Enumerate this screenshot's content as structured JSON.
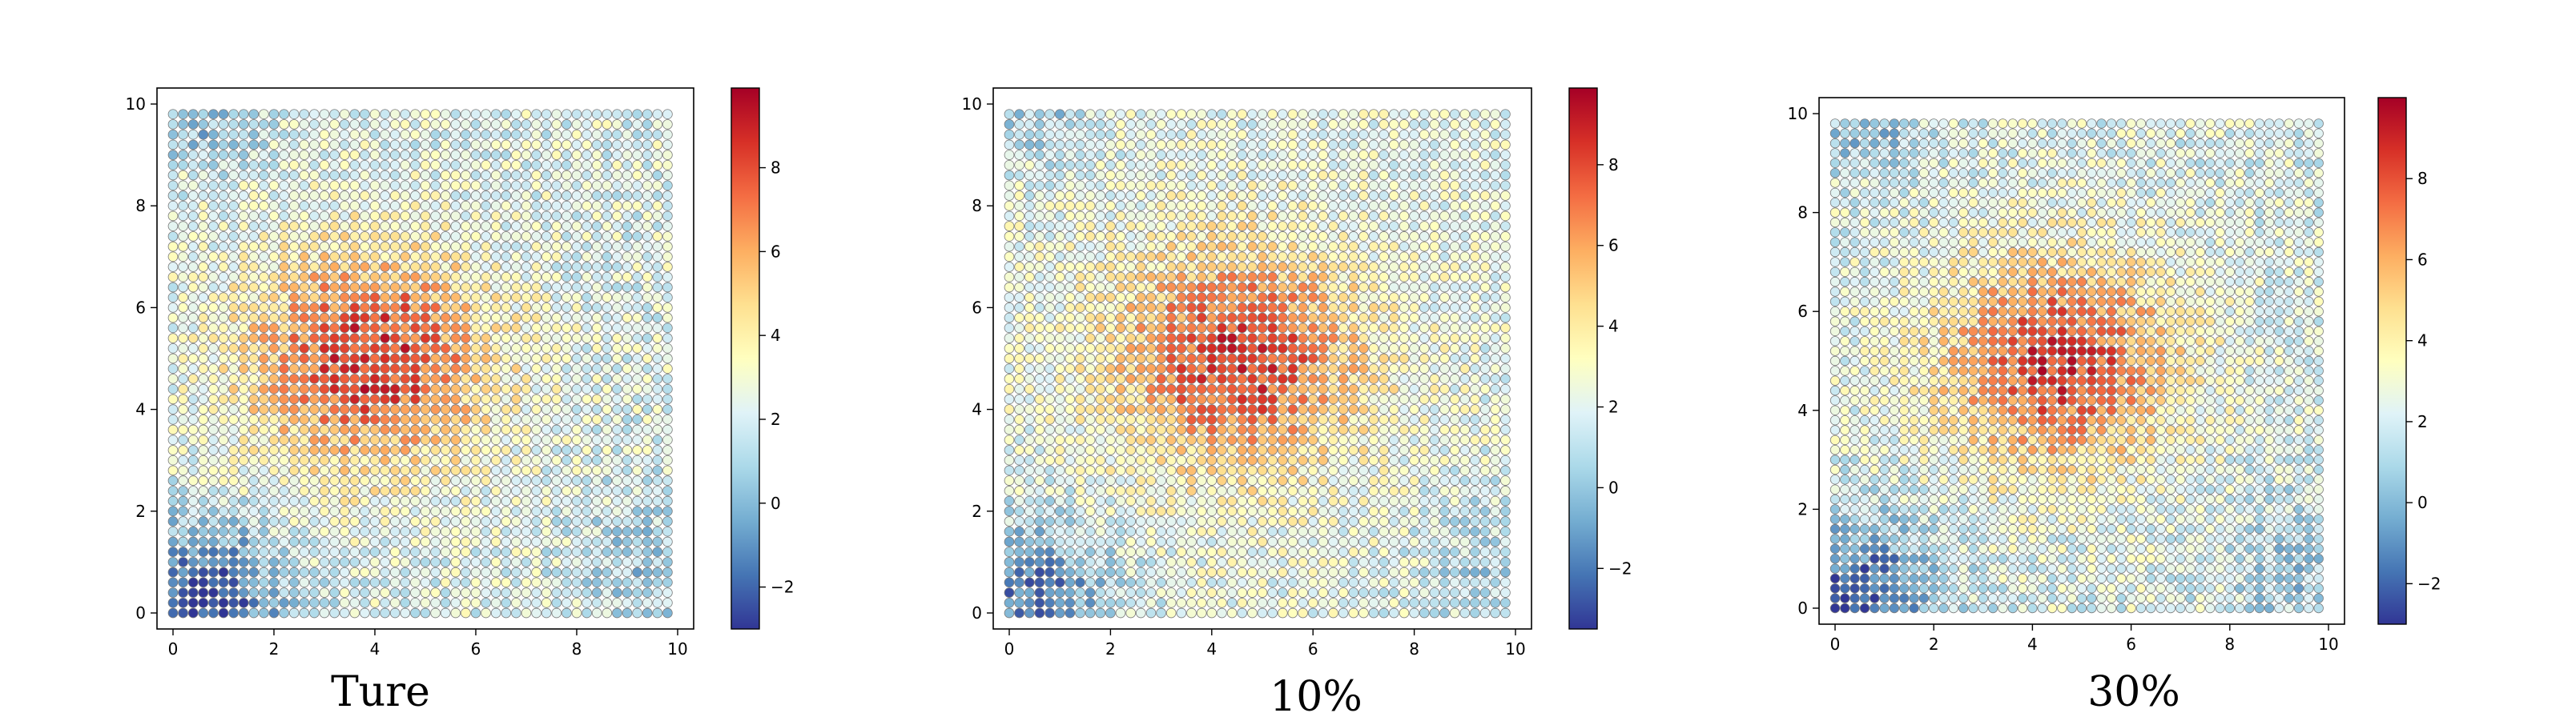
{
  "chart_data": [
    {
      "type": "scatter",
      "caption": "Ture",
      "xlim": [
        0,
        10
      ],
      "ylim": [
        0,
        10
      ],
      "xticks": [
        0,
        2,
        4,
        6,
        8,
        10
      ],
      "yticks": [
        0,
        2,
        4,
        6,
        8,
        10
      ],
      "grid": "50x50 points, spacing 0.2, from 0 to 9.8",
      "colormap": "RdYlBu_r",
      "colorbar": {
        "range": [
          -3,
          9.9
        ],
        "ticks": [
          -2,
          0,
          2,
          4,
          6,
          8
        ]
      },
      "pattern": {
        "peak": [
          3.9,
          5.0
        ],
        "peak_value": 8.6,
        "min_corner": [
          0.6,
          0.3
        ],
        "min_value": -2.6
      }
    },
    {
      "type": "scatter",
      "caption": "10%",
      "xlim": [
        0,
        10
      ],
      "ylim": [
        0,
        10
      ],
      "xticks": [
        0,
        2,
        4,
        6,
        8,
        10
      ],
      "yticks": [
        0,
        2,
        4,
        6,
        8,
        10
      ],
      "grid": "50x50 points, spacing 0.2, from 0 to 9.8",
      "colormap": "RdYlBu_r",
      "colorbar": {
        "range": [
          -3.5,
          9.9
        ],
        "ticks": [
          -2,
          0,
          2,
          4,
          6,
          8
        ]
      },
      "pattern": {
        "peak": [
          4.5,
          5.0
        ],
        "peak_value": 8.4,
        "min_corner": [
          0.5,
          0.3
        ],
        "min_value": -2.0
      }
    },
    {
      "type": "scatter",
      "caption": "30%",
      "xlim": [
        0,
        10
      ],
      "ylim": [
        0,
        10
      ],
      "xticks": [
        0,
        2,
        4,
        6,
        8,
        10
      ],
      "yticks": [
        0,
        2,
        4,
        6,
        8,
        10
      ],
      "grid": "50x50 points, spacing 0.2, from 0 to 9.8",
      "colormap": "RdYlBu_r",
      "colorbar": {
        "range": [
          -3,
          10.0
        ],
        "ticks": [
          -2,
          0,
          2,
          4,
          6,
          8
        ]
      },
      "pattern": {
        "peak": [
          4.5,
          5.0
        ],
        "peak_value": 8.5,
        "min_corner": [
          0.5,
          0.3
        ],
        "min_value": -2.2
      }
    }
  ]
}
